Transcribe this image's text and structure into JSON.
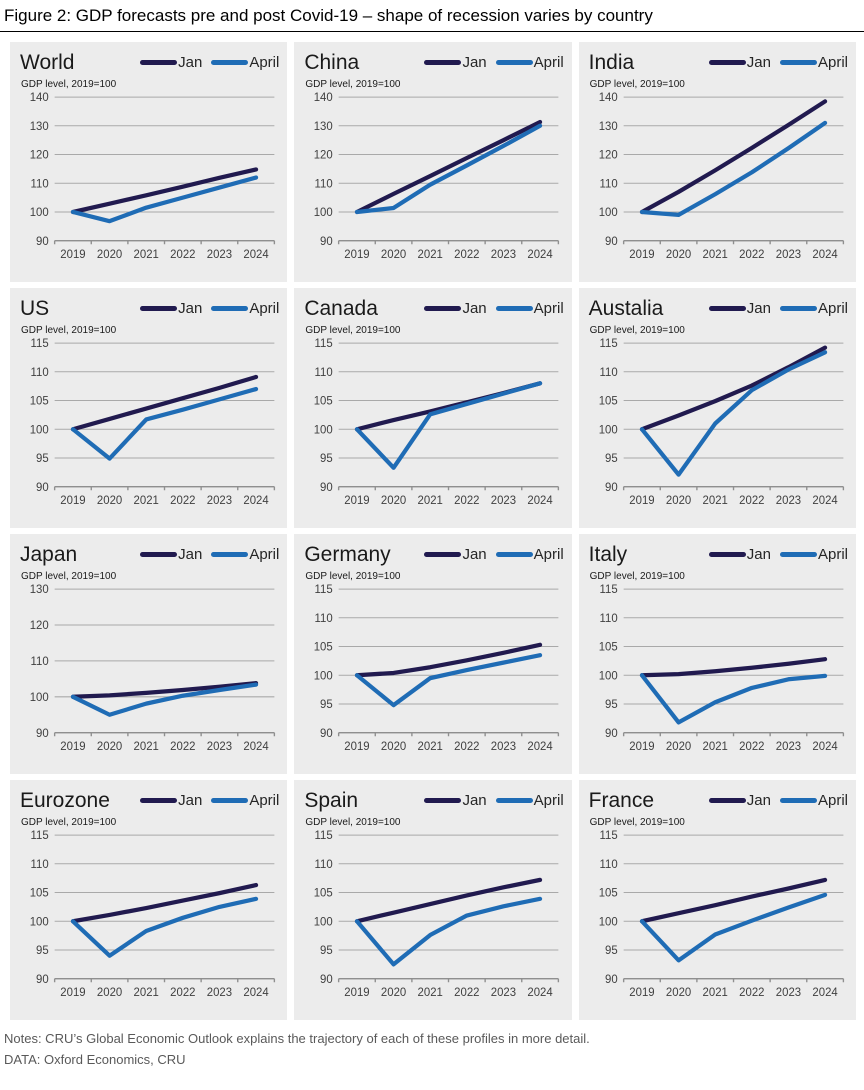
{
  "figure": {
    "title": "Figure 2: GDP forecasts pre and post Covid-19 – shape of recession varies by country",
    "notes": "Notes: CRU’s Global Economic Outlook explains the trajectory of each of these profiles in more detail.",
    "source": "DATA: Oxford Economics, CRU"
  },
  "legend": {
    "jan": "Jan",
    "april": "April"
  },
  "subtitle": "GDP level, 2019=100",
  "colors": {
    "jan": "#211a4f",
    "april": "#1f6cb5",
    "panel_bg": "#ececec",
    "gridline": "#a9a9a9",
    "axis": "#8f8f8f",
    "tick_text": "#404040"
  },
  "chart_data": [
    {
      "type": "line",
      "title": "World",
      "x": [
        2019,
        2020,
        2021,
        2022,
        2023,
        2024
      ],
      "ylim": [
        90,
        140
      ],
      "yticks": [
        90,
        100,
        110,
        120,
        130,
        140
      ],
      "series": [
        {
          "name": "Jan",
          "values": [
            100,
            102.9,
            105.8,
            108.8,
            111.9,
            114.8
          ]
        },
        {
          "name": "April",
          "values": [
            100,
            96.8,
            101.5,
            105.0,
            108.5,
            112.0
          ]
        }
      ]
    },
    {
      "type": "line",
      "title": "China",
      "x": [
        2019,
        2020,
        2021,
        2022,
        2023,
        2024
      ],
      "ylim": [
        90,
        140
      ],
      "yticks": [
        90,
        100,
        110,
        120,
        130,
        140
      ],
      "series": [
        {
          "name": "Jan",
          "values": [
            100,
            106.3,
            112.5,
            118.8,
            125.0,
            131.3
          ]
        },
        {
          "name": "April",
          "values": [
            100,
            101.4,
            109.5,
            116.2,
            123.0,
            130.0
          ]
        }
      ]
    },
    {
      "type": "line",
      "title": "India",
      "x": [
        2019,
        2020,
        2021,
        2022,
        2023,
        2024
      ],
      "ylim": [
        90,
        140
      ],
      "yticks": [
        90,
        100,
        110,
        120,
        130,
        140
      ],
      "series": [
        {
          "name": "Jan",
          "values": [
            100,
            107.0,
            114.5,
            122.3,
            130.3,
            138.5
          ]
        },
        {
          "name": "April",
          "values": [
            100,
            99.0,
            106.2,
            113.8,
            122.2,
            131.0
          ]
        }
      ]
    },
    {
      "type": "line",
      "title": "US",
      "x": [
        2019,
        2020,
        2021,
        2022,
        2023,
        2024
      ],
      "ylim": [
        90,
        115
      ],
      "yticks": [
        90,
        95,
        100,
        105,
        110,
        115
      ],
      "series": [
        {
          "name": "Jan",
          "values": [
            100,
            101.8,
            103.6,
            105.4,
            107.2,
            109.1
          ]
        },
        {
          "name": "April",
          "values": [
            100,
            94.9,
            101.7,
            103.4,
            105.2,
            107.0
          ]
        }
      ]
    },
    {
      "type": "line",
      "title": "Canada",
      "x": [
        2019,
        2020,
        2021,
        2022,
        2023,
        2024
      ],
      "ylim": [
        90,
        115
      ],
      "yticks": [
        90,
        95,
        100,
        105,
        110,
        115
      ],
      "series": [
        {
          "name": "Jan",
          "values": [
            100,
            101.6,
            103.1,
            104.7,
            106.3,
            108.0
          ]
        },
        {
          "name": "April",
          "values": [
            100,
            93.3,
            102.6,
            104.4,
            106.2,
            108.0
          ]
        }
      ]
    },
    {
      "type": "line",
      "title": "Austalia",
      "x": [
        2019,
        2020,
        2021,
        2022,
        2023,
        2024
      ],
      "ylim": [
        90,
        115
      ],
      "yticks": [
        90,
        95,
        100,
        105,
        110,
        115
      ],
      "series": [
        {
          "name": "Jan",
          "values": [
            100,
            102.4,
            104.9,
            107.6,
            110.8,
            114.2
          ]
        },
        {
          "name": "April",
          "values": [
            100,
            92.1,
            101.0,
            106.8,
            110.4,
            113.4
          ]
        }
      ]
    },
    {
      "type": "line",
      "title": "Japan",
      "x": [
        2019,
        2020,
        2021,
        2022,
        2023,
        2024
      ],
      "ylim": [
        90,
        130
      ],
      "yticks": [
        90,
        100,
        110,
        120,
        130
      ],
      "series": [
        {
          "name": "Jan",
          "values": [
            100,
            100.4,
            101.1,
            101.9,
            102.8,
            103.8
          ]
        },
        {
          "name": "April",
          "values": [
            100,
            95.0,
            98.1,
            100.3,
            101.9,
            103.4
          ]
        }
      ]
    },
    {
      "type": "line",
      "title": "Germany",
      "x": [
        2019,
        2020,
        2021,
        2022,
        2023,
        2024
      ],
      "ylim": [
        90,
        115
      ],
      "yticks": [
        90,
        95,
        100,
        105,
        110,
        115
      ],
      "series": [
        {
          "name": "Jan",
          "values": [
            100,
            100.4,
            101.4,
            102.6,
            103.9,
            105.3
          ]
        },
        {
          "name": "April",
          "values": [
            100,
            94.8,
            99.5,
            100.9,
            102.2,
            103.5
          ]
        }
      ]
    },
    {
      "type": "line",
      "title": "Italy",
      "x": [
        2019,
        2020,
        2021,
        2022,
        2023,
        2024
      ],
      "ylim": [
        90,
        115
      ],
      "yticks": [
        90,
        95,
        100,
        105,
        110,
        115
      ],
      "series": [
        {
          "name": "Jan",
          "values": [
            100,
            100.2,
            100.7,
            101.3,
            102.0,
            102.8
          ]
        },
        {
          "name": "April",
          "values": [
            100,
            91.8,
            95.3,
            97.8,
            99.3,
            99.9
          ]
        }
      ]
    },
    {
      "type": "line",
      "title": "Eurozone",
      "x": [
        2019,
        2020,
        2021,
        2022,
        2023,
        2024
      ],
      "ylim": [
        90,
        115
      ],
      "yticks": [
        90,
        95,
        100,
        105,
        110,
        115
      ],
      "series": [
        {
          "name": "Jan",
          "values": [
            100,
            101.1,
            102.3,
            103.6,
            104.9,
            106.3
          ]
        },
        {
          "name": "April",
          "values": [
            100,
            94.0,
            98.3,
            100.6,
            102.5,
            103.9
          ]
        }
      ]
    },
    {
      "type": "line",
      "title": "Spain",
      "x": [
        2019,
        2020,
        2021,
        2022,
        2023,
        2024
      ],
      "ylim": [
        90,
        115
      ],
      "yticks": [
        90,
        95,
        100,
        105,
        110,
        115
      ],
      "series": [
        {
          "name": "Jan",
          "values": [
            100,
            101.5,
            103.0,
            104.5,
            105.9,
            107.2
          ]
        },
        {
          "name": "April",
          "values": [
            100,
            92.5,
            97.6,
            101.0,
            102.6,
            103.9
          ]
        }
      ]
    },
    {
      "type": "line",
      "title": "France",
      "x": [
        2019,
        2020,
        2021,
        2022,
        2023,
        2024
      ],
      "ylim": [
        90,
        115
      ],
      "yticks": [
        90,
        95,
        100,
        105,
        110,
        115
      ],
      "series": [
        {
          "name": "Jan",
          "values": [
            100,
            101.4,
            102.8,
            104.3,
            105.7,
            107.2
          ]
        },
        {
          "name": "April",
          "values": [
            100,
            93.2,
            97.7,
            100.1,
            102.4,
            104.6
          ]
        }
      ]
    }
  ]
}
